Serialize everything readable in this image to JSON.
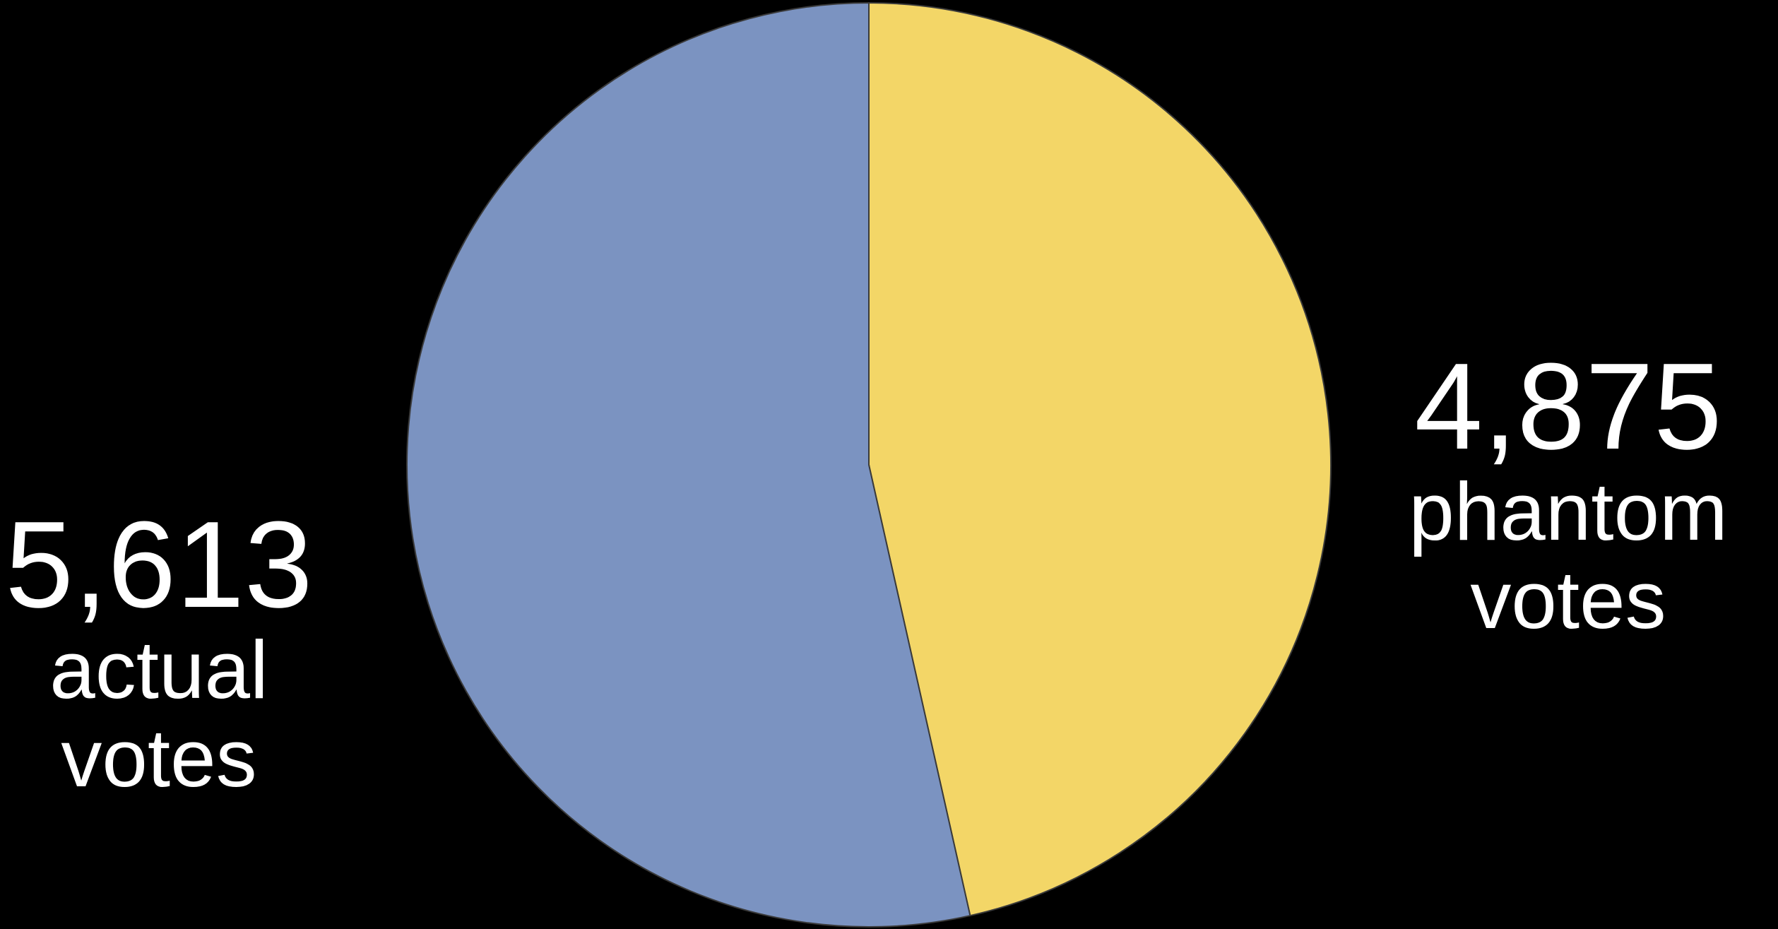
{
  "chart_data": {
    "type": "pie",
    "title": "",
    "slices": [
      {
        "label": "actual votes",
        "value": 5613,
        "display_value": "5,613",
        "caption_lines": [
          "actual",
          "votes"
        ],
        "color": "#7b93c1"
      },
      {
        "label": "phantom votes",
        "value": 4875,
        "display_value": "4,875",
        "caption_lines": [
          "phantom",
          "votes"
        ],
        "color": "#f3d667"
      }
    ],
    "start_angle_deg": 0,
    "direction": "clockwise-from-top",
    "legend": "none",
    "edge_color": "#3a3a3a"
  },
  "background_color": "#000000",
  "text_color": "#ffffff"
}
